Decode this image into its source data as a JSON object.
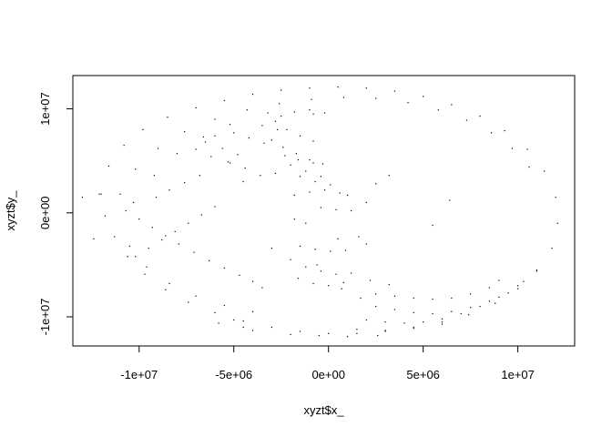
{
  "chart_data": {
    "type": "scatter",
    "title": "",
    "xlabel": "xyzt$x_",
    "ylabel": "xyzt$y_",
    "xlim": [
      -13500000,
      13000000
    ],
    "ylim": [
      -12800000,
      13200000
    ],
    "x_ticks": [
      -10000000,
      -5000000,
      0,
      5000000,
      10000000
    ],
    "x_tick_labels": [
      "-1e+07",
      "-5e+06",
      "0e+00",
      "5e+06",
      "1e+07"
    ],
    "y_ticks": [
      -10000000,
      0,
      10000000
    ],
    "y_tick_labels": [
      "-1e+07",
      "0e+00",
      "1e+07"
    ],
    "grid": false,
    "point_color": "#000000",
    "series": [
      {
        "name": "",
        "x": [
          -12000000,
          -11600000,
          -10800000,
          -9800000,
          -8500000,
          -7000000,
          -5500000,
          -4000000,
          -2500000,
          -1000000,
          500000,
          2000000,
          3500000,
          5000000,
          6500000,
          8000000,
          9300000,
          10500000,
          11400000,
          12000000,
          12100000,
          11800000,
          11000000,
          10000000,
          8800000,
          7400000,
          6000000,
          4500000,
          3000000,
          1500000,
          0,
          -1500000,
          -3000000,
          -4500000,
          -6000000,
          -7400000,
          -8600000,
          -9700000,
          -10600000,
          -11300000,
          -11800000,
          -12100000,
          -11000000,
          -10200000,
          -9000000,
          -7600000,
          -6000000,
          -4300000,
          -2600000,
          -900000,
          800000,
          2500000,
          4200000,
          5800000,
          7300000,
          8600000,
          9700000,
          10600000,
          -10500000,
          -9600000,
          -8400000,
          -7000000,
          -5500000,
          -4000000,
          -10300000,
          -9200000,
          -8000000,
          -6600000,
          -5200000,
          -3200000,
          -2800000,
          -2200000,
          -1500000,
          -800000,
          -3000000,
          -2400000,
          -1700000,
          -1000000,
          -300000,
          -2000000,
          -1200000,
          -400000,
          -2500000,
          -1800000,
          -1000000,
          -200000,
          -3500000,
          -2700000,
          -6500000,
          -5600000,
          -4800000,
          -5200000,
          -4400000,
          -6000000,
          -5000000,
          -4200000,
          -3400000,
          -7000000,
          -6200000,
          -5300000,
          -6800000,
          -7600000,
          -8400000,
          -9100000,
          -1800000,
          -1000000,
          -200000,
          600000,
          -2300000,
          -1600000,
          -800000,
          -1500000,
          -700000,
          100000,
          -400000,
          400000,
          1200000,
          -4500000,
          -3600000,
          -2800000,
          -1800000,
          -1200000,
          -3500000,
          -4000000,
          -4700000,
          -5500000,
          -6300000,
          -7100000,
          -7900000,
          -8600000,
          -9300000,
          -10000000,
          -10700000,
          -10200000,
          -9500000,
          -8800000,
          -8100000,
          -7400000,
          -6700000,
          -6000000,
          -2000000,
          -500000,
          1000000,
          2600000,
          500000,
          1600000,
          2000000,
          -1500000,
          -700000,
          100000,
          900000,
          -2000000,
          -1200000,
          -400000,
          400000,
          1200000,
          -1600000,
          -800000,
          0,
          800000,
          -3000000,
          -600000,
          700000,
          1700000,
          2200000,
          3200000,
          2500000,
          3500000,
          4500000,
          5500000,
          6500000,
          7500000,
          8500000,
          9000000,
          2500000,
          3500000,
          4500000,
          5500000,
          6500000,
          7500000,
          8500000,
          9500000,
          10300000,
          2000000,
          3000000,
          4000000,
          5000000,
          6000000,
          7000000,
          8000000,
          9000000,
          10000000,
          11000000,
          1500000,
          3000000,
          4500000,
          6000000,
          -5000000,
          -5800000,
          -4500000,
          -4000000,
          -13000000,
          -12400000,
          2500000,
          3200000,
          5500000,
          6400000,
          1000000,
          2000000,
          -800000
        ],
        "y": [
          1800000,
          4500000,
          6500000,
          8000000,
          9200000,
          10100000,
          10800000,
          11400000,
          11800000,
          12000000,
          12100000,
          12000000,
          11700000,
          11200000,
          10400000,
          9300000,
          7900000,
          6100000,
          4000000,
          1500000,
          -1000000,
          -3400000,
          -5500000,
          -7300000,
          -8700000,
          -9800000,
          -10500000,
          -11000000,
          -11400000,
          -11600000,
          -11600000,
          -11400000,
          -11000000,
          -10400000,
          -9600000,
          -8600000,
          -7400000,
          -5900000,
          -4200000,
          -2300000,
          -300000,
          1800000,
          1800000,
          4200000,
          6200000,
          7800000,
          9000000,
          9900000,
          10500000,
          10900000,
          11100000,
          11000000,
          10600000,
          9900000,
          8900000,
          7700000,
          6200000,
          4400000,
          -3200000,
          -5200000,
          -6800000,
          -8000000,
          -8900000,
          -9500000,
          1000000,
          3600000,
          5700000,
          7300000,
          8500000,
          9600000,
          8800000,
          8000000,
          7400000,
          6900000,
          7000000,
          6300000,
          5700000,
          5100000,
          4700000,
          4600000,
          4000000,
          3500000,
          9300000,
          9700000,
          9900000,
          9600000,
          8400000,
          8000000,
          6800000,
          6200000,
          5600000,
          4800000,
          4300000,
          7400000,
          7700000,
          7200000,
          6700000,
          6100000,
          5400000,
          4900000,
          3600000,
          2900000,
          2200000,
          1500000,
          1700000,
          2000000,
          2200000,
          1900000,
          5500000,
          5100000,
          4800000,
          3500000,
          3000000,
          2700000,
          500000,
          300000,
          200000,
          3000000,
          3600000,
          3800000,
          -600000,
          -1000000,
          -7200000,
          -6600000,
          -6000000,
          -5300000,
          -4600000,
          -3800000,
          -3000000,
          -2200000,
          -1400000,
          -600000,
          200000,
          -4200000,
          -3400000,
          -2600000,
          -1800000,
          -1000000,
          -200000,
          600000,
          -11700000,
          -11800000,
          -11900000,
          -11800000,
          -2500000,
          -2300000,
          -3000000,
          -3200000,
          -3500000,
          -3700000,
          -3600000,
          -4500000,
          -5200000,
          -5600000,
          -5900000,
          -5800000,
          -6300000,
          -6800000,
          -7000000,
          -6700000,
          -3400000,
          -5000000,
          -7300000,
          -8200000,
          -6500000,
          -6900000,
          -7800000,
          -8000000,
          -8200000,
          -8300000,
          -8200000,
          -7800000,
          -7200000,
          -6500000,
          -9000000,
          -9300000,
          -9600000,
          -9700000,
          -9500000,
          -9100000,
          -8500000,
          -7700000,
          -6600000,
          -10300000,
          -10500000,
          -10600000,
          -10500000,
          -10200000,
          -9700000,
          -9000000,
          -8100000,
          -7000000,
          -5600000,
          -11200000,
          -11300000,
          -11100000,
          -10700000,
          -10300000,
          -10600000,
          -11000000,
          -11300000,
          1500000,
          -2500000,
          2800000,
          3600000,
          -1200000,
          1200000,
          1700000,
          1000000,
          9500000
        ]
      }
    ]
  }
}
